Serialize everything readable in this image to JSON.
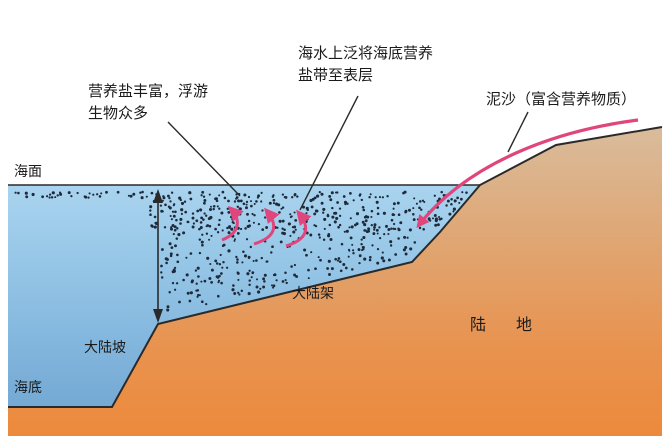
{
  "labels": {
    "nutrients_line1": "营养盐丰富，浮游",
    "nutrients_line2": "生物众多",
    "upwelling_line1": "海水上泛将海底营养",
    "upwelling_line2": "盐带至表层",
    "sediment": "泥沙（富含营养物质）",
    "sea_surface": "海面",
    "continental_shelf": "大陆架",
    "continental_slope": "大陆坡",
    "sea_floor": "海底",
    "land": "陆地"
  },
  "colors": {
    "sea": "#8fc4e4",
    "sea_deep": "#6fa6d2",
    "land_top": "#d4b08c",
    "land_bottom": "#e4873e",
    "arrow": "#e0457b",
    "outline": "#2a2a2a"
  }
}
